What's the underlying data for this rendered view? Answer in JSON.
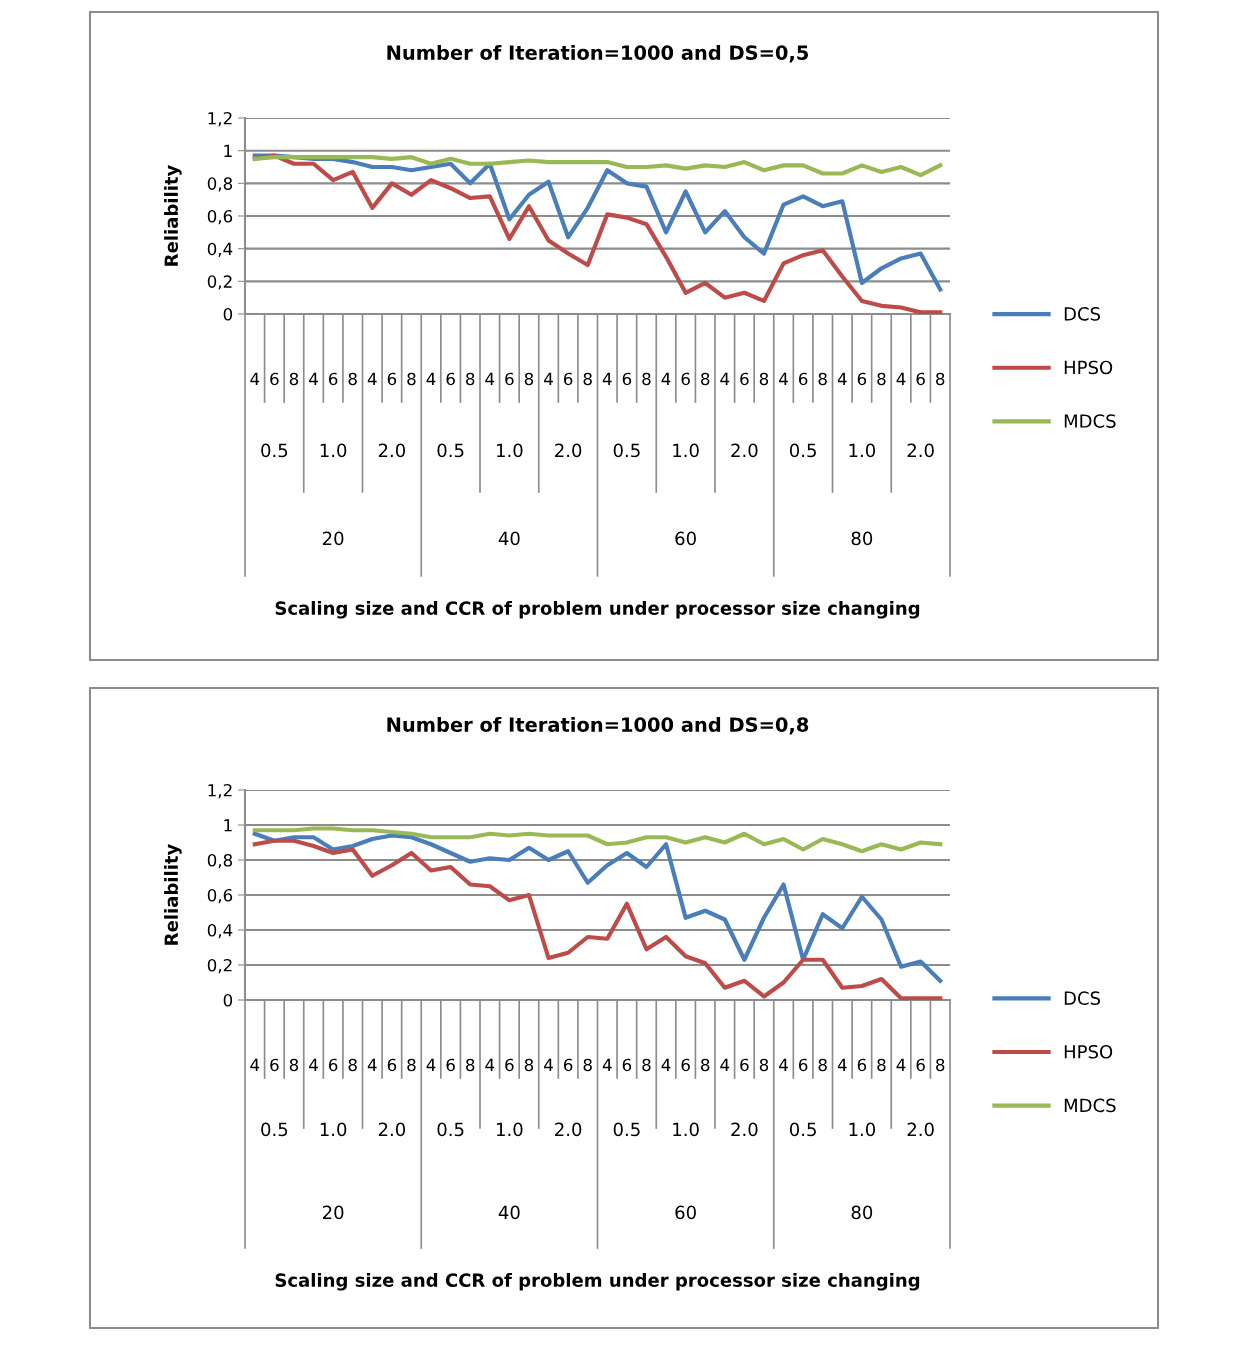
{
  "chart_data": [
    {
      "type": "line",
      "title": "Number of Iteration=1000 and DS=0,5",
      "xlabel": "Scaling size and CCR of problem under processor size changing",
      "ylabel": "Reliability",
      "categories": [
        "4",
        "6",
        "8",
        "4",
        "6",
        "8",
        "4",
        "6",
        "8",
        "4",
        "6",
        "8",
        "4",
        "6",
        "8",
        "4",
        "6",
        "8",
        "4",
        "6",
        "8",
        "4",
        "6",
        "8",
        "4",
        "6",
        "8",
        "4",
        "6",
        "8",
        "4",
        "6",
        "8",
        "4",
        "6",
        "8"
      ],
      "annotations": [
        "0.5",
        "1.0",
        "2.0",
        "0.5",
        "1.0",
        "2.0",
        "0.5",
        "1.0",
        "2.0",
        "0.5",
        "1.0",
        "2.0",
        "20",
        "40",
        "60",
        "80"
      ],
      "ylim": [
        0,
        1.2
      ],
      "yticks": [
        0,
        {
          "value": 0.2,
          "label": "0,2"
        },
        {
          "value": 0.4,
          "label": "0,4"
        },
        {
          "value": 0.6,
          "label": "0,6"
        },
        {
          "value": 0.8,
          "label": "0,8"
        },
        1,
        {
          "value": 1.2,
          "label": "1,2"
        }
      ],
      "grid": "y",
      "legend": "right",
      "marker": "none",
      "series": [
        {
          "name": "DCS",
          "color": "#4a7ebb",
          "values": [
            0.97,
            0.97,
            0.96,
            0.95,
            0.95,
            0.93,
            0.9,
            0.9,
            0.88,
            0.9,
            0.92,
            0.8,
            0.92,
            0.58,
            0.73,
            0.81,
            0.47,
            0.65,
            0.88,
            0.8,
            0.78,
            0.5,
            0.75,
            0.5,
            0.63,
            0.47,
            0.37,
            0.67,
            0.72,
            0.66,
            0.69,
            0.19,
            0.28,
            0.34,
            0.37,
            0.15
          ]
        },
        {
          "name": "HPSO",
          "color": "#be4b48",
          "values": [
            0.95,
            0.97,
            0.92,
            0.92,
            0.82,
            0.87,
            0.65,
            0.8,
            0.73,
            0.82,
            0.77,
            0.71,
            0.72,
            0.46,
            0.66,
            0.45,
            0.37,
            0.3,
            0.61,
            0.59,
            0.55,
            0.35,
            0.13,
            0.19,
            0.1,
            0.13,
            0.08,
            0.31,
            0.36,
            0.39,
            0.23,
            0.08,
            0.05,
            0.04,
            0.01,
            0.01
          ]
        },
        {
          "name": "MDCS",
          "color": "#98b954",
          "values": [
            0.95,
            0.96,
            0.96,
            0.96,
            0.96,
            0.96,
            0.96,
            0.95,
            0.96,
            0.92,
            0.95,
            0.92,
            0.92,
            0.93,
            0.94,
            0.93,
            0.93,
            0.93,
            0.93,
            0.9,
            0.9,
            0.91,
            0.89,
            0.91,
            0.9,
            0.93,
            0.88,
            0.91,
            0.91,
            0.86,
            0.86,
            0.91,
            0.87,
            0.9,
            0.85,
            0.91
          ]
        }
      ]
    },
    {
      "type": "line",
      "title": "Number of Iteration=1000 and DS=0,8",
      "xlabel": "Scaling size and CCR of problem under processor size changing",
      "ylabel": "Reliability",
      "categories": [
        "4",
        "6",
        "8",
        "4",
        "6",
        "8",
        "4",
        "6",
        "8",
        "4",
        "6",
        "8",
        "4",
        "6",
        "8",
        "4",
        "6",
        "8",
        "4",
        "6",
        "8",
        "4",
        "6",
        "8",
        "4",
        "6",
        "8",
        "4",
        "6",
        "8",
        "4",
        "6",
        "8",
        "4",
        "6",
        "8"
      ],
      "annotations": [
        "0.5",
        "1.0",
        "2.0",
        "0.5",
        "1.0",
        "2.0",
        "0.5",
        "1.0",
        "2.0",
        "0.5",
        "1.0",
        "2.0",
        "20",
        "40",
        "60",
        "80"
      ],
      "ylim": [
        0,
        1.2
      ],
      "yticks": [
        0,
        {
          "value": 0.2,
          "label": "0,2"
        },
        {
          "value": 0.4,
          "label": "0,4"
        },
        {
          "value": 0.6,
          "label": "0,6"
        },
        {
          "value": 0.8,
          "label": "0,8"
        },
        1,
        {
          "value": 1.2,
          "label": "1,2"
        }
      ],
      "grid": "y",
      "legend": "right",
      "marker": "none",
      "series": [
        {
          "name": "DCS",
          "color": "#4a7ebb",
          "values": [
            0.95,
            0.91,
            0.93,
            0.93,
            0.86,
            0.88,
            0.92,
            0.94,
            0.93,
            0.89,
            0.84,
            0.79,
            0.81,
            0.8,
            0.87,
            0.8,
            0.85,
            0.67,
            0.77,
            0.84,
            0.76,
            0.89,
            0.47,
            0.51,
            0.46,
            0.23,
            0.47,
            0.66,
            0.23,
            0.49,
            0.41,
            0.59,
            0.46,
            0.19,
            0.22,
            0.11
          ]
        },
        {
          "name": "HPSO",
          "color": "#be4b48",
          "values": [
            0.89,
            0.91,
            0.91,
            0.88,
            0.84,
            0.86,
            0.71,
            0.77,
            0.84,
            0.74,
            0.76,
            0.66,
            0.65,
            0.57,
            0.6,
            0.24,
            0.27,
            0.36,
            0.35,
            0.55,
            0.29,
            0.36,
            0.25,
            0.21,
            0.07,
            0.11,
            0.02,
            0.1,
            0.23,
            0.23,
            0.07,
            0.08,
            0.12,
            0.01,
            0.01,
            0.01
          ]
        },
        {
          "name": "MDCS",
          "color": "#98b954",
          "values": [
            0.97,
            0.97,
            0.97,
            0.98,
            0.98,
            0.97,
            0.97,
            0.96,
            0.95,
            0.93,
            0.93,
            0.93,
            0.95,
            0.94,
            0.95,
            0.94,
            0.94,
            0.94,
            0.89,
            0.9,
            0.93,
            0.93,
            0.9,
            0.93,
            0.9,
            0.95,
            0.89,
            0.92,
            0.86,
            0.92,
            0.89,
            0.85,
            0.89,
            0.86,
            0.9,
            0.89
          ]
        }
      ]
    }
  ]
}
